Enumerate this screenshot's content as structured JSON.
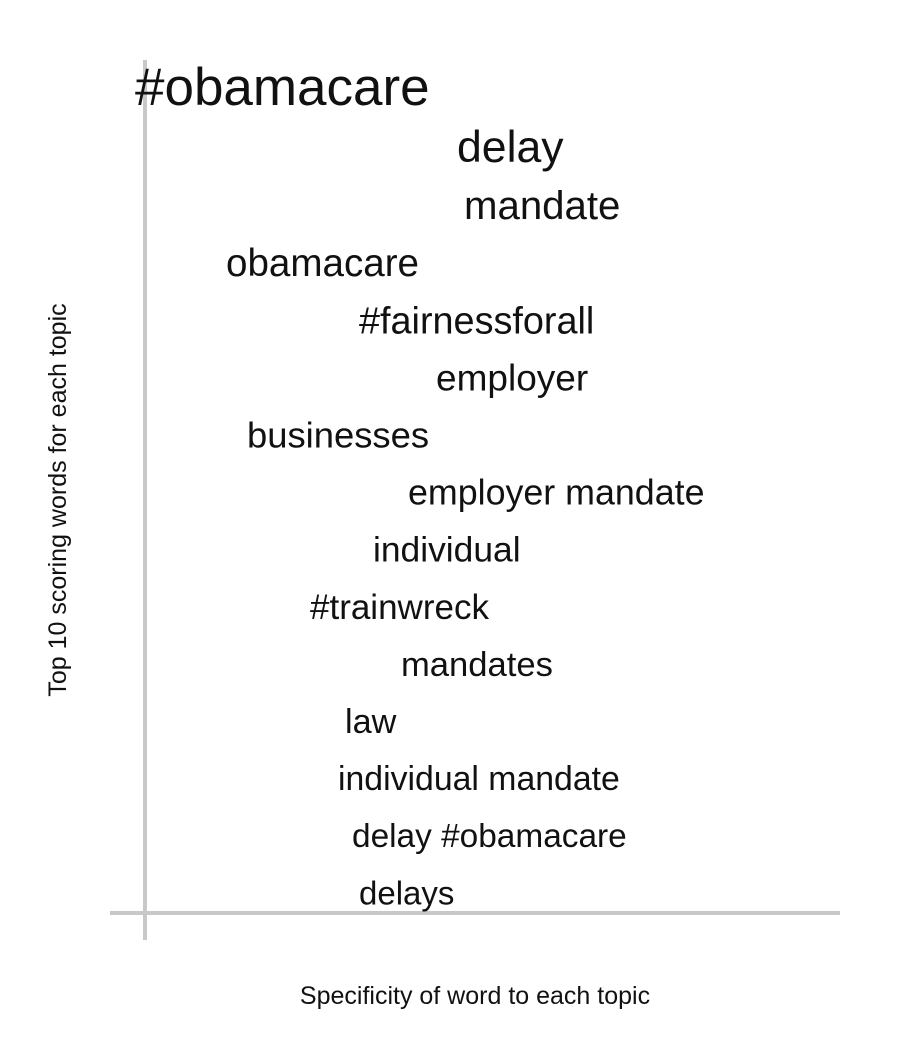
{
  "chart_data": {
    "type": "scatter",
    "title": "",
    "xlabel": "Specificity of word to each topic",
    "ylabel": "Top 10 scoring words for each topic",
    "grid": false,
    "words": [
      {
        "text": "#obamacare",
        "x": 0.0,
        "weight": 1.0
      },
      {
        "text": "delay",
        "x": 0.46,
        "weight": 0.58
      },
      {
        "text": "mandate",
        "x": 0.47,
        "weight": 0.36
      },
      {
        "text": "obamacare",
        "x": 0.13,
        "weight": 0.28
      },
      {
        "text": "#fairnessforall",
        "x": 0.32,
        "weight": 0.24
      },
      {
        "text": "employer",
        "x": 0.43,
        "weight": 0.2
      },
      {
        "text": "businesses",
        "x": 0.16,
        "weight": 0.17
      },
      {
        "text": "employer mandate",
        "x": 0.39,
        "weight": 0.14
      },
      {
        "text": "individual",
        "x": 0.34,
        "weight": 0.12
      },
      {
        "text": "#trainwreck",
        "x": 0.25,
        "weight": 0.1
      },
      {
        "text": "mandates",
        "x": 0.38,
        "weight": 0.08
      },
      {
        "text": "law",
        "x": 0.3,
        "weight": 0.06
      },
      {
        "text": "individual mandate",
        "x": 0.29,
        "weight": 0.04
      },
      {
        "text": "delay #obamacare",
        "x": 0.31,
        "weight": 0.02
      },
      {
        "text": "delays",
        "x": 0.32,
        "weight": 0.0
      }
    ]
  }
}
